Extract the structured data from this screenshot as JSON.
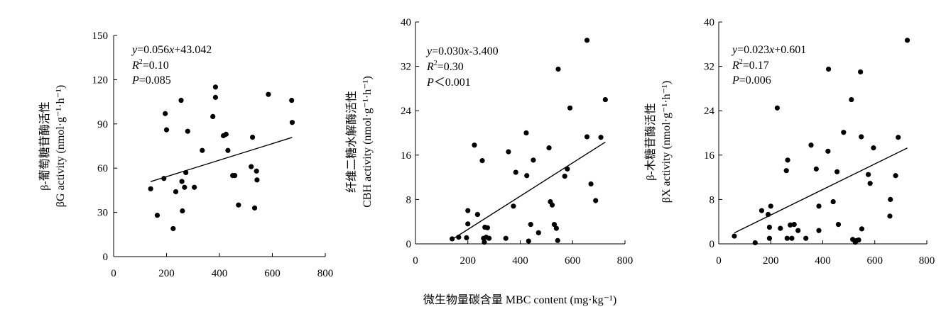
{
  "shared_xlabel": "微生物量碳含量 MBC content (mg·kg⁻¹)",
  "chart_data": [
    {
      "type": "scatter",
      "ylabel_line1": "β-葡萄糖苷酶活性",
      "ylabel_line2": "βG activity (nmol·g⁻¹·h⁻¹)",
      "eq": {
        "y": "y",
        "eq_rest": "=0.056",
        "x": "x",
        "tail": "+43.042",
        "r2": "R",
        "sup": "2",
        "r2_rest": "=0.10",
        "p": "P",
        "p_rest": "=0.085"
      },
      "xlim": [
        0,
        800
      ],
      "ylim": [
        0,
        150
      ],
      "xticks": [
        0,
        200,
        400,
        600,
        800
      ],
      "yticks": [
        0,
        30,
        60,
        90,
        120,
        150
      ],
      "fit": {
        "slope": 0.056,
        "intercept": 43.042,
        "x_range": [
          140,
          675
        ]
      },
      "points": [
        [
          140,
          46
        ],
        [
          165,
          28
        ],
        [
          190,
          53
        ],
        [
          195,
          97
        ],
        [
          200,
          86
        ],
        [
          225,
          19
        ],
        [
          235,
          44
        ],
        [
          255,
          106
        ],
        [
          258,
          51
        ],
        [
          260,
          31
        ],
        [
          268,
          47
        ],
        [
          273,
          57
        ],
        [
          280,
          85
        ],
        [
          305,
          47
        ],
        [
          335,
          72
        ],
        [
          375,
          95
        ],
        [
          385,
          108
        ],
        [
          385,
          115
        ],
        [
          415,
          82
        ],
        [
          425,
          83
        ],
        [
          432,
          72
        ],
        [
          450,
          55
        ],
        [
          458,
          55
        ],
        [
          472,
          35
        ],
        [
          520,
          61
        ],
        [
          525,
          81
        ],
        [
          533,
          33
        ],
        [
          540,
          58
        ],
        [
          542,
          52
        ],
        [
          585,
          110
        ],
        [
          673,
          106
        ],
        [
          675,
          91
        ]
      ]
    },
    {
      "type": "scatter",
      "ylabel_line1": "纤维二糖水解酶活性",
      "ylabel_line2": "CBH activity (nmol·g⁻¹·h⁻¹)",
      "eq": {
        "y": "y",
        "eq_rest": "=0.030",
        "x": "x",
        "tail": "-3.400",
        "r2": "R",
        "sup": "2",
        "r2_rest": "=0.30",
        "p": "P",
        "p_rest": "＜0.001"
      },
      "xlim": [
        0,
        800
      ],
      "ylim": [
        0,
        40
      ],
      "xticks": [
        0,
        200,
        400,
        600,
        800
      ],
      "yticks": [
        0,
        8,
        16,
        24,
        32,
        40
      ],
      "fit": {
        "slope": 0.03,
        "intercept": -3.4,
        "x_range": [
          140,
          725
        ]
      },
      "points": [
        [
          140,
          0.9
        ],
        [
          165,
          1.2
        ],
        [
          195,
          1.1
        ],
        [
          200,
          6
        ],
        [
          200,
          3.6
        ],
        [
          225,
          17.8
        ],
        [
          237,
          5.3
        ],
        [
          255,
          15
        ],
        [
          260,
          1
        ],
        [
          263,
          0.3
        ],
        [
          265,
          3
        ],
        [
          270,
          1.2
        ],
        [
          275,
          2.9
        ],
        [
          281,
          1
        ],
        [
          345,
          1
        ],
        [
          355,
          16.6
        ],
        [
          374,
          6.8
        ],
        [
          383,
          12.9
        ],
        [
          423,
          20
        ],
        [
          425,
          12.3
        ],
        [
          432,
          0.5
        ],
        [
          440,
          3.5
        ],
        [
          450,
          15.1
        ],
        [
          470,
          2
        ],
        [
          510,
          17.3
        ],
        [
          515,
          7.6
        ],
        [
          522,
          7
        ],
        [
          530,
          3.5
        ],
        [
          538,
          2.8
        ],
        [
          545,
          31.5
        ],
        [
          543,
          0.6
        ],
        [
          570,
          12.2
        ],
        [
          580,
          13.5
        ],
        [
          590,
          24.5
        ],
        [
          655,
          19.3
        ],
        [
          655,
          36.7
        ],
        [
          670,
          10.8
        ],
        [
          688,
          7.8
        ],
        [
          708,
          19.2
        ],
        [
          725,
          26
        ]
      ]
    },
    {
      "type": "scatter",
      "ylabel_line1": "β-木糖苷酶活性",
      "ylabel_line2": "βX activity (nmol·g⁻¹·h⁻¹)",
      "eq": {
        "y": "y",
        "eq_rest": "=0.023",
        "x": "x",
        "tail": "+0.601",
        "r2": "R",
        "sup": "2",
        "r2_rest": "=0.17",
        "p": "P",
        "p_rest": "=0.006"
      },
      "xlim": [
        0,
        800
      ],
      "ylim": [
        0,
        40
      ],
      "xticks": [
        0,
        200,
        400,
        600,
        800
      ],
      "yticks": [
        0,
        8,
        16,
        24,
        32,
        40
      ],
      "fit": {
        "slope": 0.023,
        "intercept": 0.601,
        "x_range": [
          60,
          725
        ]
      },
      "points": [
        [
          60,
          1.4
        ],
        [
          140,
          0.2
        ],
        [
          165,
          6
        ],
        [
          190,
          5.3
        ],
        [
          195,
          1
        ],
        [
          195,
          3
        ],
        [
          200,
          6.8
        ],
        [
          225,
          24.5
        ],
        [
          237,
          2.8
        ],
        [
          260,
          13.2
        ],
        [
          263,
          1
        ],
        [
          265,
          15.1
        ],
        [
          275,
          3.4
        ],
        [
          281,
          1
        ],
        [
          290,
          3.5
        ],
        [
          305,
          2.4
        ],
        [
          335,
          1
        ],
        [
          355,
          17.8
        ],
        [
          375,
          13.5
        ],
        [
          385,
          2.4
        ],
        [
          385,
          6.8
        ],
        [
          420,
          16.7
        ],
        [
          422,
          31.5
        ],
        [
          440,
          7.6
        ],
        [
          455,
          13
        ],
        [
          460,
          3.5
        ],
        [
          480,
          20.1
        ],
        [
          510,
          26
        ],
        [
          515,
          0.8
        ],
        [
          525,
          0.3
        ],
        [
          530,
          0.6
        ],
        [
          538,
          0.7
        ],
        [
          545,
          31
        ],
        [
          548,
          19.3
        ],
        [
          550,
          2.7
        ],
        [
          575,
          12.5
        ],
        [
          582,
          10.9
        ],
        [
          595,
          17.3
        ],
        [
          658,
          5
        ],
        [
          660,
          8
        ],
        [
          680,
          12.3
        ],
        [
          690,
          19.2
        ],
        [
          725,
          36.7
        ]
      ]
    }
  ]
}
